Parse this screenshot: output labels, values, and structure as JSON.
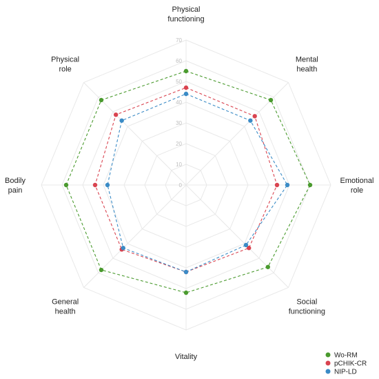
{
  "chart_data": {
    "type": "radar",
    "axes": [
      [
        "Physical",
        "functioning"
      ],
      [
        "Mental",
        "health"
      ],
      [
        "Emotional",
        "role"
      ],
      [
        "Social",
        "functioning"
      ],
      [
        "Vitality"
      ],
      [
        "General",
        "health"
      ],
      [
        "Bodily",
        "pain"
      ],
      [
        "Physical",
        "role"
      ]
    ],
    "rlim": [
      0,
      70
    ],
    "ticks": [
      "0",
      "10",
      "20",
      "30",
      "40",
      "50",
      "60",
      "70"
    ],
    "grid": true,
    "legend_position": "bottom-right",
    "series": [
      {
        "name": "Wo-RM",
        "color": "#4a9a2e",
        "values": [
          55,
          58,
          60,
          56,
          52,
          58,
          58,
          58
        ]
      },
      {
        "name": "pCHIK-CR",
        "color": "#d9434f",
        "values": [
          47,
          47,
          44,
          43,
          42,
          44,
          44,
          48
        ]
      },
      {
        "name": "NIP-LD",
        "color": "#3a8bc6",
        "values": [
          44,
          44,
          49,
          41,
          42,
          43,
          38,
          44
        ]
      }
    ]
  }
}
